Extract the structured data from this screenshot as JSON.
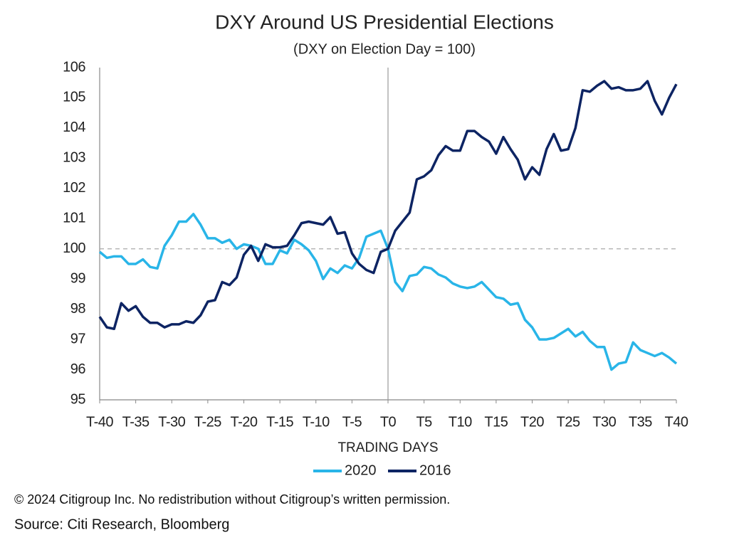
{
  "chart_data": {
    "type": "line",
    "title": "DXY Around US Presidential Elections",
    "subtitle": "(DXY on Election Day = 100)",
    "xlabel": "TRADING DAYS",
    "x": [
      -40,
      -39,
      -38,
      -37,
      -36,
      -35,
      -34,
      -33,
      -32,
      -31,
      -30,
      -29,
      -28,
      -27,
      -26,
      -25,
      -24,
      -23,
      -22,
      -21,
      -20,
      -19,
      -18,
      -17,
      -16,
      -15,
      -14,
      -13,
      -12,
      -11,
      -10,
      -9,
      -8,
      -7,
      -6,
      -5,
      -4,
      -3,
      -2,
      -1,
      0,
      1,
      2,
      3,
      4,
      5,
      6,
      7,
      8,
      9,
      10,
      11,
      12,
      13,
      14,
      15,
      16,
      17,
      18,
      19,
      20,
      21,
      22,
      23,
      24,
      25,
      26,
      27,
      28,
      29,
      30,
      31,
      32,
      33,
      34,
      35,
      36,
      37,
      38,
      39,
      40
    ],
    "series": [
      {
        "name": "2020",
        "color": "#29b5e8",
        "values": [
          99.9,
          99.7,
          99.75,
          99.75,
          99.5,
          99.5,
          99.65,
          99.4,
          99.35,
          100.1,
          100.45,
          100.9,
          100.9,
          101.15,
          100.8,
          100.35,
          100.35,
          100.2,
          100.3,
          100.0,
          100.15,
          100.1,
          100.0,
          99.5,
          99.5,
          99.95,
          99.85,
          100.3,
          100.15,
          99.95,
          99.6,
          99.0,
          99.35,
          99.2,
          99.45,
          99.35,
          99.7,
          100.4,
          100.5,
          100.6,
          100.0,
          98.9,
          98.6,
          99.1,
          99.15,
          99.4,
          99.35,
          99.15,
          99.05,
          98.85,
          98.75,
          98.7,
          98.75,
          98.9,
          98.65,
          98.4,
          98.35,
          98.15,
          98.2,
          97.65,
          97.4,
          97.0,
          97.0,
          97.05,
          97.2,
          97.35,
          97.1,
          97.25,
          96.95,
          96.75,
          96.75,
          96.0,
          96.2,
          96.25,
          96.9,
          96.65,
          96.55,
          96.45,
          96.55,
          96.4,
          96.2
        ]
      },
      {
        "name": "2016",
        "color": "#0d2463",
        "values": [
          97.75,
          97.4,
          97.35,
          98.2,
          97.95,
          98.1,
          97.75,
          97.55,
          97.55,
          97.4,
          97.5,
          97.5,
          97.6,
          97.55,
          97.8,
          98.25,
          98.3,
          98.9,
          98.8,
          99.05,
          99.8,
          100.1,
          99.6,
          100.15,
          100.05,
          100.05,
          100.1,
          100.45,
          100.85,
          100.9,
          100.85,
          100.8,
          101.05,
          100.5,
          100.55,
          99.85,
          99.5,
          99.3,
          99.2,
          99.9,
          100.0,
          100.6,
          100.9,
          101.2,
          102.3,
          102.4,
          102.6,
          103.1,
          103.4,
          103.25,
          103.25,
          103.9,
          103.9,
          103.7,
          103.55,
          103.15,
          103.7,
          103.3,
          102.95,
          102.3,
          102.7,
          102.45,
          103.3,
          103.8,
          103.25,
          103.3,
          104.0,
          105.25,
          105.2,
          105.4,
          105.55,
          105.3,
          105.35,
          105.25,
          105.25,
          105.3,
          105.55,
          104.9,
          104.45,
          105.0,
          105.45
        ]
      }
    ],
    "xlim": [
      -40,
      40
    ],
    "xticks": [
      {
        "value": -40,
        "label": "T-40"
      },
      {
        "value": -35,
        "label": "T-35"
      },
      {
        "value": -30,
        "label": "T-30"
      },
      {
        "value": -25,
        "label": "T-25"
      },
      {
        "value": -20,
        "label": "T-20"
      },
      {
        "value": -15,
        "label": "T-15"
      },
      {
        "value": -10,
        "label": "T-10"
      },
      {
        "value": -5,
        "label": "T-5"
      },
      {
        "value": 0,
        "label": "T0"
      },
      {
        "value": 5,
        "label": "T5"
      },
      {
        "value": 10,
        "label": "T10"
      },
      {
        "value": 15,
        "label": "T15"
      },
      {
        "value": 20,
        "label": "T20"
      },
      {
        "value": 25,
        "label": "T25"
      },
      {
        "value": 30,
        "label": "T30"
      },
      {
        "value": 35,
        "label": "T35"
      },
      {
        "value": 40,
        "label": "T40"
      }
    ],
    "ylim": [
      95,
      106
    ],
    "yticks": [
      95,
      96,
      97,
      98,
      99,
      100,
      101,
      102,
      103,
      104,
      105,
      106
    ],
    "hline": 100,
    "vline": 0,
    "grid": false,
    "legend": "bottom"
  },
  "footer": {
    "copyright": "© 2024 Citigroup Inc. No redistribution without Citigroup’s written permission.",
    "source": "Source: Citi Research, Bloomberg"
  }
}
